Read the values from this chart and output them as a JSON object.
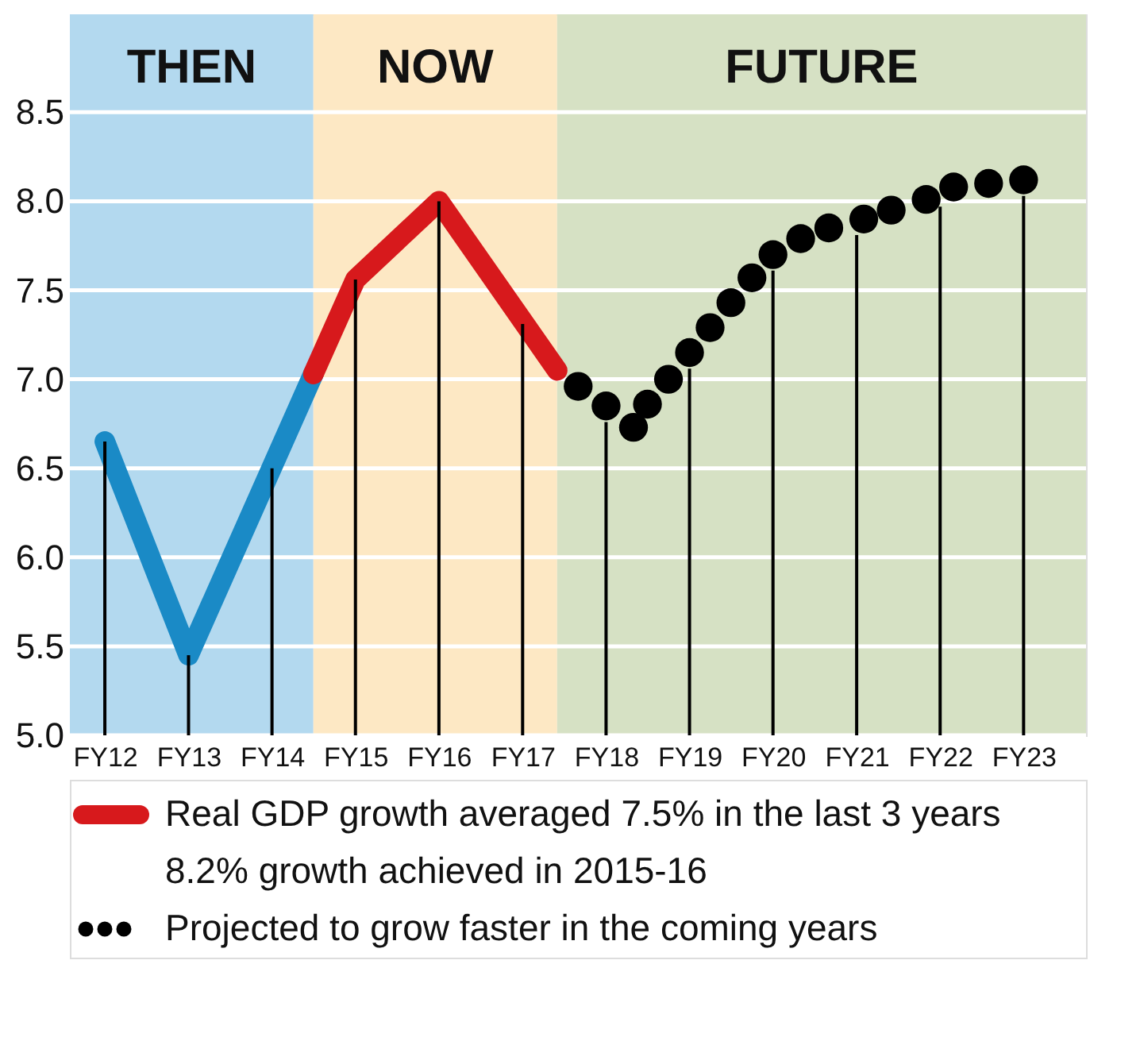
{
  "chart_data": {
    "type": "line",
    "xlim": [
      "2011-08",
      "2023-10"
    ],
    "ylim": [
      5.0,
      9.05
    ],
    "xticks": [
      {
        "value": "2012",
        "label": "FY12"
      },
      {
        "value": "2013",
        "label": "FY13"
      },
      {
        "value": "2014",
        "label": "FY14"
      },
      {
        "value": "2015",
        "label": "FY15"
      },
      {
        "value": "2016",
        "label": "FY16"
      },
      {
        "value": "2017",
        "label": "FY17"
      },
      {
        "value": "2018",
        "label": "FY18"
      },
      {
        "value": "2019",
        "label": "FY19"
      },
      {
        "value": "2020",
        "label": "FY20"
      },
      {
        "value": "2021",
        "label": "FY21"
      },
      {
        "value": "2022",
        "label": "FY22"
      },
      {
        "value": "2023",
        "label": "FY23"
      }
    ],
    "yticks": [
      {
        "value": 5.0,
        "label": "5.0"
      },
      {
        "value": 5.5,
        "label": "5.5"
      },
      {
        "value": 6.0,
        "label": "6.0"
      },
      {
        "value": 6.5,
        "label": "6.5"
      },
      {
        "value": 7.0,
        "label": "7.0"
      },
      {
        "value": 7.5,
        "label": "7.5"
      },
      {
        "value": 8.0,
        "label": "8.0"
      },
      {
        "value": 8.5,
        "label": "8.5"
      }
    ],
    "grid": "y",
    "legend": "bottom",
    "series": [
      {
        "color": "#1a8ac6",
        "x": [
          "2012",
          "2013",
          "2014-07"
        ],
        "values": [
          6.65,
          5.45,
          7.03
        ]
      },
      {
        "name": "Real GDP growth averaged 7.5% in the last 3 years",
        "color": "#d7191c",
        "x": [
          "2014-07",
          "2015",
          "2016",
          "2017-06"
        ],
        "values": [
          7.03,
          7.56,
          8.0,
          7.05
        ]
      },
      {
        "type": "scatter",
        "marker": "circle",
        "name": "Projected to grow faster in the coming years",
        "color": "#000000",
        "x": [
          "2017-09",
          "2018",
          "2018-05",
          "2018-07",
          "2018-10",
          "2019",
          "2019-04",
          "2019-07",
          "2019-10",
          "2020",
          "2020-05",
          "2020-09",
          "2021-02",
          "2021-06",
          "2021-11",
          "2022-03",
          "2022-08",
          "2023"
        ],
        "values": [
          6.96,
          6.85,
          6.73,
          6.86,
          7.0,
          7.15,
          7.29,
          7.43,
          7.57,
          7.7,
          7.79,
          7.85,
          7.9,
          7.95,
          8.01,
          8.08,
          8.1,
          8.12
        ]
      },
      {
        "type": "bar",
        "color": "#000000",
        "x": [
          "2012",
          "2013",
          "2014",
          "2015",
          "2016",
          "2017",
          "2018",
          "2019",
          "2020",
          "2021",
          "2022",
          "2023"
        ],
        "values": [
          6.65,
          5.45,
          6.5,
          7.56,
          8.0,
          7.31,
          6.76,
          7.06,
          7.61,
          7.81,
          7.97,
          8.03
        ]
      }
    ],
    "bands": [
      {
        "axis": "x",
        "from": "2011-08",
        "to": "2014-07",
        "label": "THEN",
        "color": "#b3d9ef"
      },
      {
        "axis": "x",
        "from": "2014-07",
        "to": "2017-06",
        "label": "NOW",
        "color": "#fde8c4"
      },
      {
        "axis": "x",
        "from": "2017-06",
        "to": "2023-10",
        "label": "FUTURE",
        "color": "#d6e1c4"
      }
    ],
    "annotations": [
      "8.2% growth achieved in 2015-16"
    ]
  }
}
